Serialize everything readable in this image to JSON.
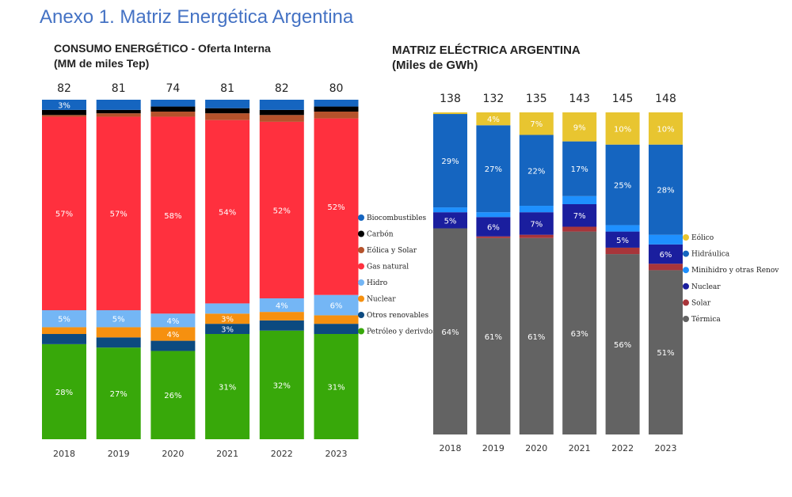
{
  "page_title": "Anexo 1. Matriz Energética Argentina",
  "chart_data": [
    {
      "type": "bar",
      "stacked": "percent",
      "title": "CONSUMO ENERGÉTICO - Oferta Interna",
      "subtitle": "(MM de miles Tep)",
      "categories": [
        "2018",
        "2019",
        "2020",
        "2021",
        "2022",
        "2023"
      ],
      "totals": [
        82,
        81,
        74,
        81,
        82,
        80
      ],
      "legend_position": "right",
      "series": [
        {
          "name": "Petróleo y derivdos",
          "color": "#38a80a",
          "values": [
            28,
            27,
            26,
            31,
            32,
            31
          ],
          "labels": [
            "28%",
            "27%",
            "26%",
            "31%",
            "32%",
            "31%"
          ]
        },
        {
          "name": "Otros renovables",
          "color": "#0c4a80",
          "values": [
            3,
            3,
            3,
            3,
            3,
            3
          ],
          "labels": [
            "",
            "",
            "",
            "3%",
            "",
            ""
          ]
        },
        {
          "name": "Nuclear",
          "color": "#f6900f",
          "values": [
            2,
            3,
            4,
            3,
            2.5,
            2.5
          ],
          "labels": [
            "",
            "",
            "4%",
            "3%",
            "",
            ""
          ]
        },
        {
          "name": "Hidro",
          "color": "#74b6f5",
          "values": [
            5,
            5,
            4,
            3,
            4,
            6
          ],
          "labels": [
            "5%",
            "5%",
            "4%",
            "",
            "4%",
            "6%"
          ]
        },
        {
          "name": "Gas natural",
          "color": "#ff303e",
          "values": [
            57,
            57,
            58,
            54,
            52,
            52
          ],
          "labels": [
            "57%",
            "57%",
            "58%",
            "54%",
            "52%",
            "52%"
          ]
        },
        {
          "name": "Eólica y Solar",
          "color": "#b5522b",
          "values": [
            0.5,
            1,
            1.5,
            2,
            2,
            2
          ],
          "labels": [
            "",
            "",
            "",
            "",
            "",
            ""
          ]
        },
        {
          "name": "Carbón",
          "color": "#000000",
          "values": [
            1.5,
            1,
            1.5,
            1.5,
            1.5,
            1.5
          ],
          "labels": [
            "",
            "",
            "",
            "",
            "",
            ""
          ]
        },
        {
          "name": "Biocombustibles",
          "color": "#1565c0",
          "values": [
            3,
            3,
            2,
            2.5,
            3,
            2
          ],
          "labels": [
            "3%",
            "",
            "",
            "",
            "",
            ""
          ]
        }
      ],
      "legend_order": [
        "Biocombustibles",
        "Carbón",
        "Eólica y Solar",
        "Gas natural",
        "Hidro",
        "Nuclear",
        "Otros renovables",
        "Petróleo y derivdos"
      ]
    },
    {
      "type": "bar",
      "stacked": "percent",
      "title": "MATRIZ ELÉCTRICA ARGENTINA",
      "subtitle": "(Miles de GWh)",
      "categories": [
        "2018",
        "2019",
        "2020",
        "2021",
        "2022",
        "2023"
      ],
      "totals": [
        138,
        132,
        135,
        143,
        145,
        148
      ],
      "legend_position": "right",
      "series": [
        {
          "name": "Térmica",
          "color": "#636363",
          "values": [
            64,
            61,
            61,
            63,
            56,
            51
          ],
          "labels": [
            "64%",
            "61%",
            "61%",
            "63%",
            "56%",
            "51%"
          ]
        },
        {
          "name": "Solar",
          "color": "#a8353a",
          "values": [
            0,
            0.5,
            1,
            1.5,
            2,
            2
          ],
          "labels": [
            "",
            "",
            "",
            "",
            "",
            ""
          ]
        },
        {
          "name": "Nuclear",
          "color": "#1a1e9e",
          "values": [
            5,
            6,
            7,
            7,
            5,
            6
          ],
          "labels": [
            "5%",
            "6%",
            "7%",
            "7%",
            "5%",
            "6%"
          ]
        },
        {
          "name": "Minihidro y otras Renov",
          "color": "#1e90ff",
          "values": [
            1.5,
            1.5,
            2,
            2.5,
            2,
            3
          ],
          "labels": [
            "",
            "",
            "",
            "",
            "",
            ""
          ]
        },
        {
          "name": "Hidráulica",
          "color": "#1565c0",
          "values": [
            29,
            27,
            22,
            17,
            25,
            28
          ],
          "labels": [
            "29%",
            "27%",
            "22%",
            "17%",
            "25%",
            "28%"
          ]
        },
        {
          "name": "Eólico",
          "color": "#e8c530",
          "values": [
            0.5,
            4,
            7,
            9,
            10,
            10
          ],
          "labels": [
            "",
            "4%",
            "7%",
            "9%",
            "10%",
            "10%"
          ]
        }
      ],
      "legend_order": [
        "Eólico",
        "Hidráulica",
        "Minihidro y otras Renov",
        "Nuclear",
        "Solar",
        "Térmica"
      ]
    }
  ]
}
